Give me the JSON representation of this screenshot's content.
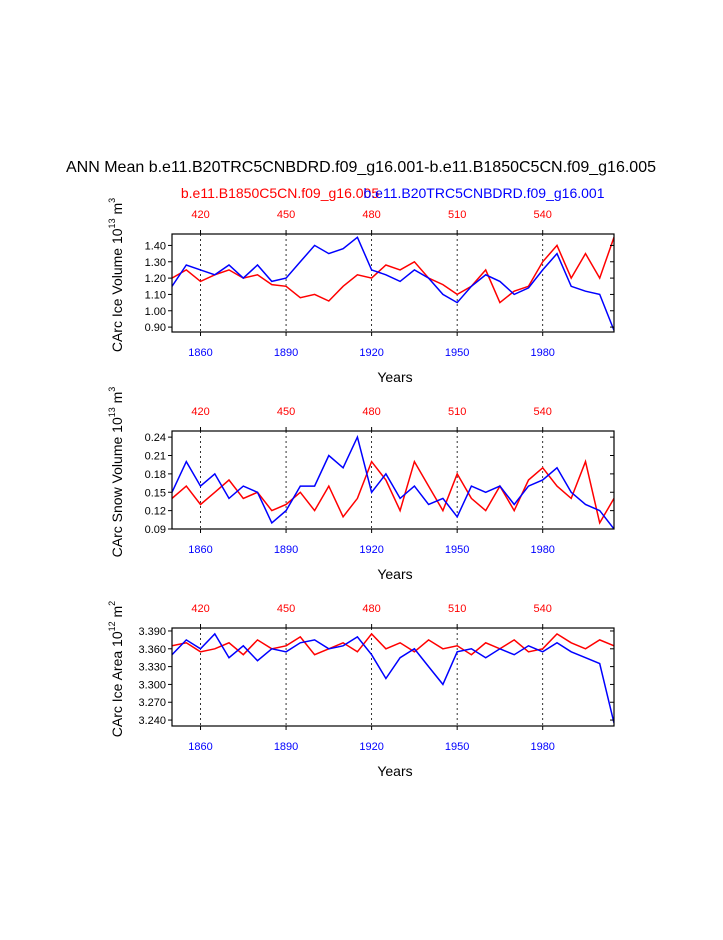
{
  "main_title": "ANN Mean b.e11.B20TRC5CNBDRD.f09_g16.001-b.e11.B1850C5CN.f09_g16.005",
  "legend": {
    "left_label": "b.e11.B1850C5CN.f09_g16.005",
    "right_label": "b.e11.B20TRC5CNBDRD.f09_g16.001"
  },
  "colors": {
    "red": "#ff0000",
    "blue": "#0000ff",
    "axis": "#000000",
    "grid": "#000000"
  },
  "chart_data": [
    {
      "type": "line",
      "ylabel": "CArc Ice Volume 10",
      "ylabel_exp": "13",
      "ylabel_unit": "m",
      "ylabel_unit_exp": "3",
      "xlabel": "Years",
      "xlim": [
        1850,
        2005
      ],
      "ylim": [
        0.87,
        1.47
      ],
      "yticks": [
        0.9,
        1.0,
        1.1,
        1.2,
        1.3,
        1.4
      ],
      "yticklabels": [
        "0.90",
        "1.00",
        "1.10",
        "1.20",
        "1.30",
        "1.40"
      ],
      "xticks": [
        1860,
        1890,
        1920,
        1950,
        1980
      ],
      "xticklabels": [
        "1860",
        "1890",
        "1920",
        "1950",
        "1980"
      ],
      "top_ticks": [
        1860,
        1890,
        1920,
        1950,
        1980
      ],
      "top_ticklabels": [
        "420",
        "450",
        "480",
        "510",
        "540"
      ],
      "series": [
        {
          "name": "b.e11.B1850C5CN.f09_g16.005",
          "color": "red",
          "x": [
            1850,
            1855,
            1860,
            1865,
            1870,
            1875,
            1880,
            1885,
            1890,
            1895,
            1900,
            1905,
            1910,
            1915,
            1920,
            1925,
            1930,
            1935,
            1940,
            1945,
            1950,
            1955,
            1960,
            1965,
            1970,
            1975,
            1980,
            1985,
            1990,
            1995,
            2000,
            2005
          ],
          "y": [
            1.2,
            1.25,
            1.18,
            1.22,
            1.25,
            1.2,
            1.22,
            1.16,
            1.15,
            1.08,
            1.1,
            1.06,
            1.15,
            1.22,
            1.2,
            1.28,
            1.25,
            1.3,
            1.2,
            1.16,
            1.1,
            1.15,
            1.25,
            1.05,
            1.12,
            1.15,
            1.3,
            1.4,
            1.2,
            1.35,
            1.2,
            1.45
          ]
        },
        {
          "name": "b.e11.B20TRC5CNBDRD.f09_g16.001",
          "color": "blue",
          "x": [
            1850,
            1855,
            1860,
            1865,
            1870,
            1875,
            1880,
            1885,
            1890,
            1895,
            1900,
            1905,
            1910,
            1915,
            1920,
            1925,
            1930,
            1935,
            1940,
            1945,
            1950,
            1955,
            1960,
            1965,
            1970,
            1975,
            1980,
            1985,
            1990,
            1995,
            2000,
            2005
          ],
          "y": [
            1.15,
            1.28,
            1.25,
            1.22,
            1.28,
            1.2,
            1.28,
            1.18,
            1.2,
            1.3,
            1.4,
            1.35,
            1.38,
            1.45,
            1.25,
            1.22,
            1.18,
            1.25,
            1.2,
            1.1,
            1.05,
            1.15,
            1.22,
            1.18,
            1.1,
            1.14,
            1.25,
            1.35,
            1.15,
            1.12,
            1.1,
            0.88
          ]
        }
      ]
    },
    {
      "type": "line",
      "ylabel": "CArc Snow Volume 10",
      "ylabel_exp": "13",
      "ylabel_unit": "m",
      "ylabel_unit_exp": "3",
      "xlabel": "Years",
      "xlim": [
        1850,
        2005
      ],
      "ylim": [
        0.09,
        0.25
      ],
      "yticks": [
        0.09,
        0.12,
        0.15,
        0.18,
        0.21,
        0.24
      ],
      "yticklabels": [
        "0.09",
        "0.12",
        "0.15",
        "0.18",
        "0.21",
        "0.24"
      ],
      "xticks": [
        1860,
        1890,
        1920,
        1950,
        1980
      ],
      "xticklabels": [
        "1860",
        "1890",
        "1920",
        "1950",
        "1980"
      ],
      "top_ticks": [
        1860,
        1890,
        1920,
        1950,
        1980
      ],
      "top_ticklabels": [
        "420",
        "450",
        "480",
        "510",
        "540"
      ],
      "series": [
        {
          "name": "b.e11.B1850C5CN.f09_g16.005",
          "color": "red",
          "x": [
            1850,
            1855,
            1860,
            1865,
            1870,
            1875,
            1880,
            1885,
            1890,
            1895,
            1900,
            1905,
            1910,
            1915,
            1920,
            1925,
            1930,
            1935,
            1940,
            1945,
            1950,
            1955,
            1960,
            1965,
            1970,
            1975,
            1980,
            1985,
            1990,
            1995,
            2000,
            2005
          ],
          "y": [
            0.14,
            0.16,
            0.13,
            0.15,
            0.17,
            0.14,
            0.15,
            0.12,
            0.13,
            0.15,
            0.12,
            0.16,
            0.11,
            0.14,
            0.2,
            0.17,
            0.12,
            0.2,
            0.16,
            0.12,
            0.18,
            0.14,
            0.12,
            0.16,
            0.12,
            0.17,
            0.19,
            0.16,
            0.14,
            0.2,
            0.1,
            0.14
          ]
        },
        {
          "name": "b.e11.B20TRC5CNBDRD.f09_g16.001",
          "color": "blue",
          "x": [
            1850,
            1855,
            1860,
            1865,
            1870,
            1875,
            1880,
            1885,
            1890,
            1895,
            1900,
            1905,
            1910,
            1915,
            1920,
            1925,
            1930,
            1935,
            1940,
            1945,
            1950,
            1955,
            1960,
            1965,
            1970,
            1975,
            1980,
            1985,
            1990,
            1995,
            2000,
            2005
          ],
          "y": [
            0.15,
            0.2,
            0.16,
            0.18,
            0.14,
            0.16,
            0.15,
            0.1,
            0.12,
            0.16,
            0.16,
            0.21,
            0.19,
            0.24,
            0.15,
            0.18,
            0.14,
            0.16,
            0.13,
            0.14,
            0.11,
            0.16,
            0.15,
            0.16,
            0.13,
            0.16,
            0.17,
            0.19,
            0.15,
            0.13,
            0.12,
            0.09
          ]
        }
      ]
    },
    {
      "type": "line",
      "ylabel": "CArc Ice Area 10",
      "ylabel_exp": "12",
      "ylabel_unit": "m",
      "ylabel_unit_exp": "2",
      "xlabel": "Years",
      "xlim": [
        1850,
        2005
      ],
      "ylim": [
        3.23,
        3.395
      ],
      "yticks": [
        3.24,
        3.27,
        3.3,
        3.33,
        3.36,
        3.39
      ],
      "yticklabels": [
        "3.240",
        "3.270",
        "3.300",
        "3.330",
        "3.360",
        "3.390"
      ],
      "xticks": [
        1860,
        1890,
        1920,
        1950,
        1980
      ],
      "xticklabels": [
        "1860",
        "1890",
        "1920",
        "1950",
        "1980"
      ],
      "top_ticks": [
        1860,
        1890,
        1920,
        1950,
        1980
      ],
      "top_ticklabels": [
        "420",
        "450",
        "480",
        "510",
        "540"
      ],
      "series": [
        {
          "name": "b.e11.B1850C5CN.f09_g16.005",
          "color": "red",
          "x": [
            1850,
            1855,
            1860,
            1865,
            1870,
            1875,
            1880,
            1885,
            1890,
            1895,
            1900,
            1905,
            1910,
            1915,
            1920,
            1925,
            1930,
            1935,
            1940,
            1945,
            1950,
            1955,
            1960,
            1965,
            1970,
            1975,
            1980,
            1985,
            1990,
            1995,
            2000,
            2005
          ],
          "y": [
            3.365,
            3.37,
            3.355,
            3.36,
            3.37,
            3.35,
            3.375,
            3.36,
            3.365,
            3.38,
            3.35,
            3.36,
            3.37,
            3.355,
            3.385,
            3.36,
            3.37,
            3.355,
            3.375,
            3.36,
            3.365,
            3.35,
            3.37,
            3.36,
            3.375,
            3.355,
            3.36,
            3.385,
            3.37,
            3.36,
            3.375,
            3.365
          ]
        },
        {
          "name": "b.e11.B20TRC5CNBDRD.f09_g16.001",
          "color": "blue",
          "x": [
            1850,
            1855,
            1860,
            1865,
            1870,
            1875,
            1880,
            1885,
            1890,
            1895,
            1900,
            1905,
            1910,
            1915,
            1920,
            1925,
            1930,
            1935,
            1940,
            1945,
            1950,
            1955,
            1960,
            1965,
            1970,
            1975,
            1980,
            1985,
            1990,
            1995,
            2000,
            2005
          ],
          "y": [
            3.35,
            3.375,
            3.36,
            3.385,
            3.345,
            3.365,
            3.34,
            3.36,
            3.355,
            3.37,
            3.375,
            3.36,
            3.365,
            3.38,
            3.35,
            3.31,
            3.345,
            3.36,
            3.33,
            3.3,
            3.355,
            3.36,
            3.345,
            3.36,
            3.35,
            3.365,
            3.355,
            3.37,
            3.355,
            3.345,
            3.335,
            3.235
          ]
        }
      ]
    }
  ]
}
